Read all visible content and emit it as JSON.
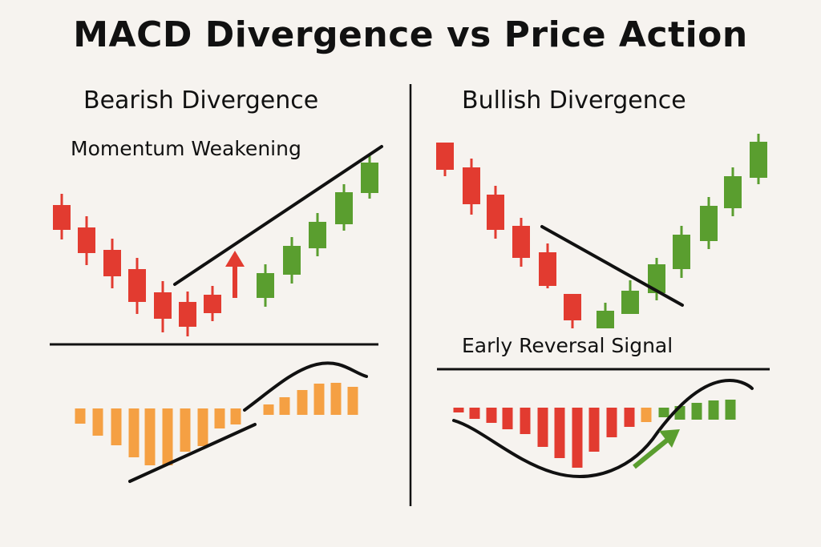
{
  "title": "MACD Divergence vs Price Action",
  "panels": {
    "left": {
      "title": "Bearish Divergence",
      "annotation": "Momentum Weakening"
    },
    "right": {
      "title": "Bullish Divergence",
      "annotation": "Early Reversal Signal"
    }
  },
  "colors": {
    "background": "#f6f3ef",
    "bear_red": "#e23b30",
    "bull_green": "#5a9e2f",
    "histogram_orange": "#f5a043",
    "line": "#111111",
    "arrow_red": "#e23b30",
    "arrow_green": "#5a9e2f"
  },
  "icons": {
    "left_arrow": "up-arrow-icon",
    "right_arrow": "diagonal-up-arrow-icon"
  }
}
